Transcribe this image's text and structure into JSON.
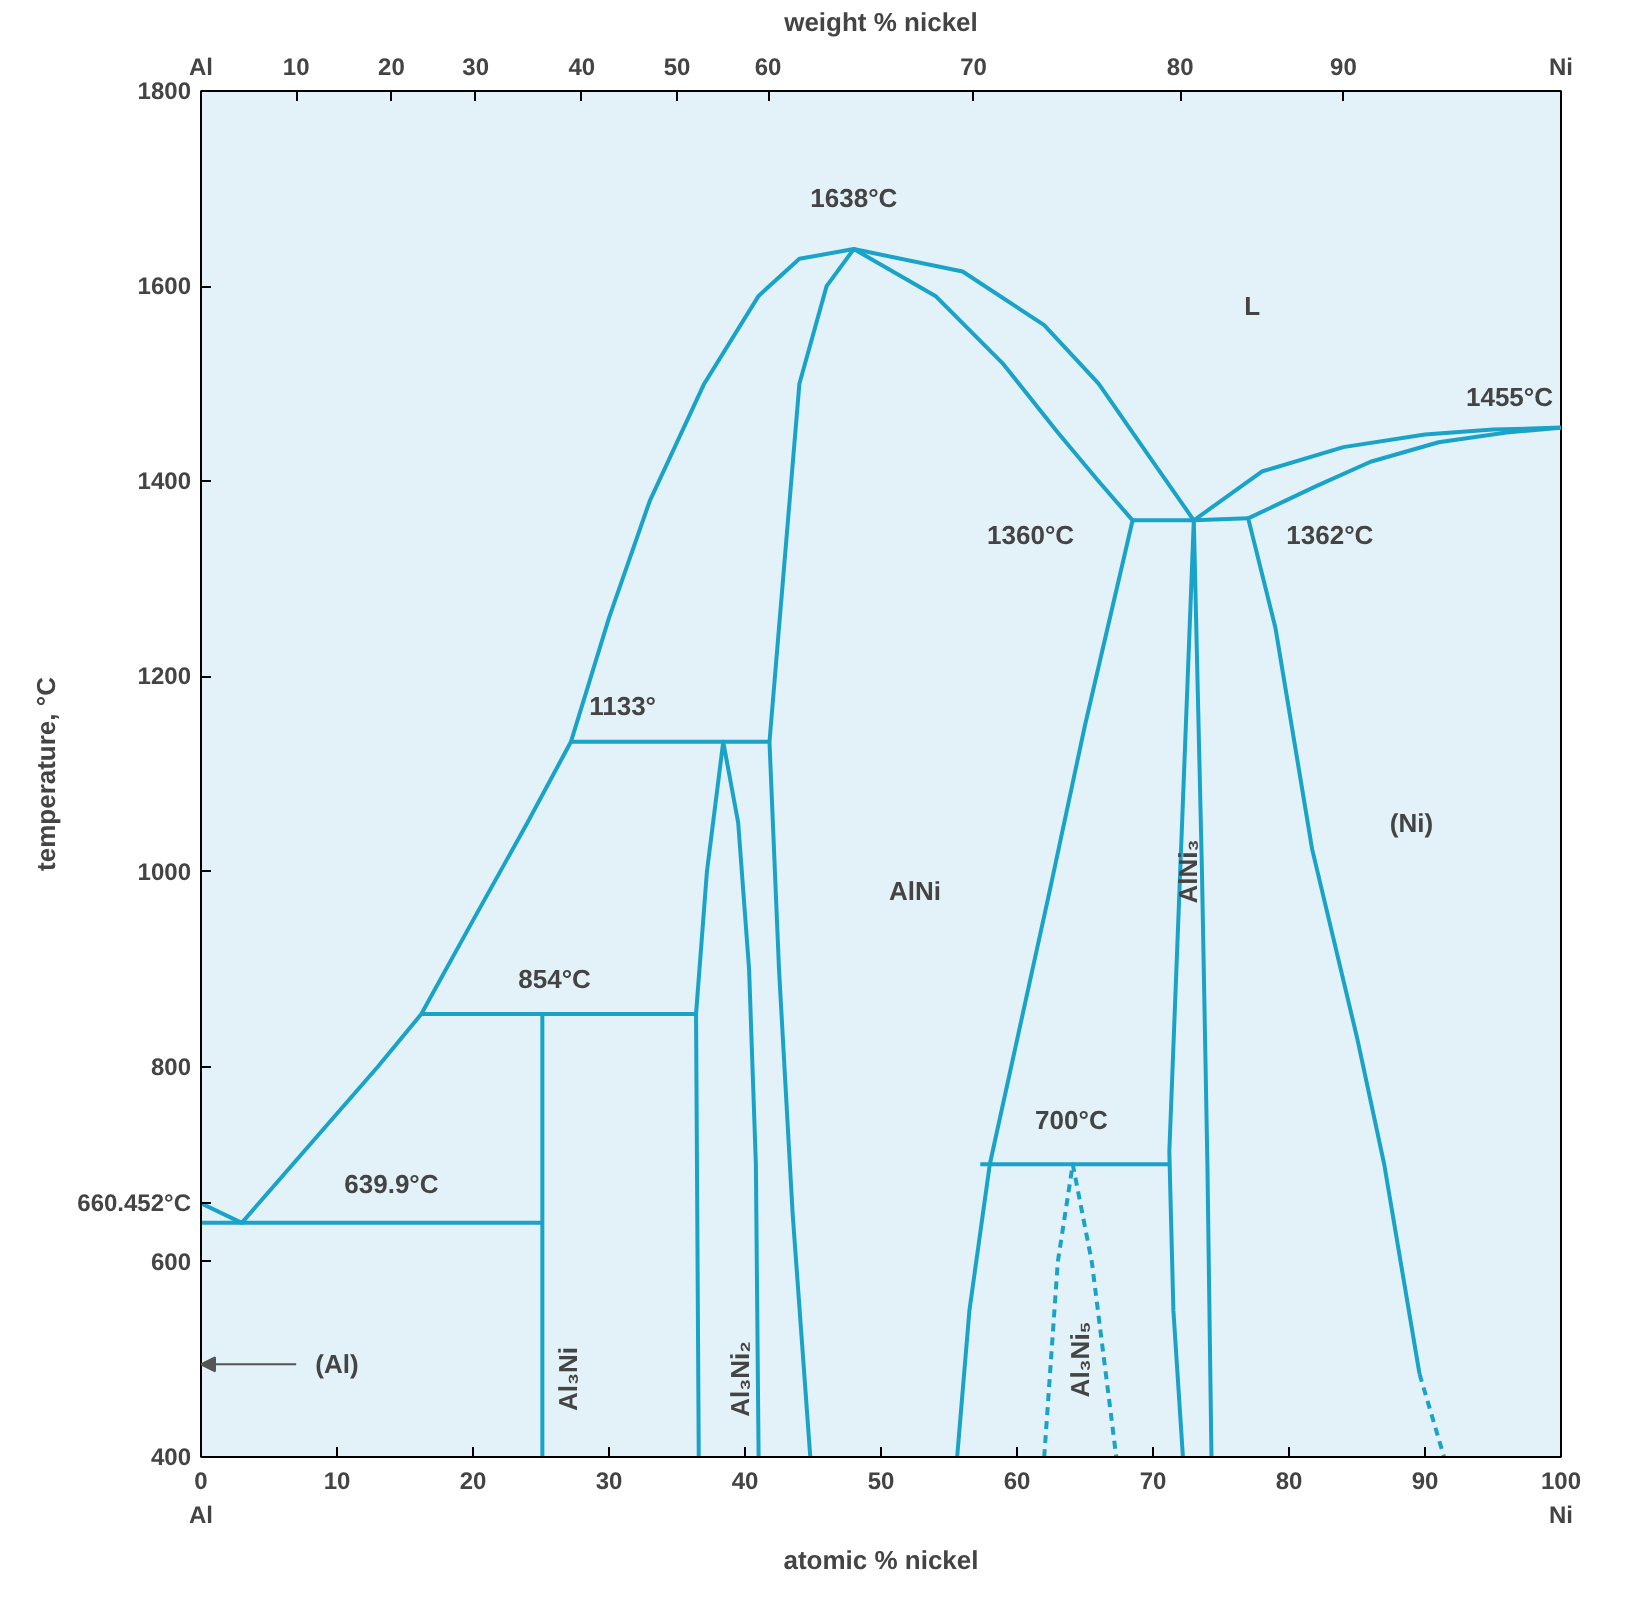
{
  "chart_data": {
    "type": "line",
    "xlabel": "atomic % nickel",
    "ylabel": "temperature, °C",
    "x2label": "weight % nickel",
    "xlim": [
      0,
      100
    ],
    "ylim": [
      400,
      1800
    ],
    "xticks": [
      {
        "value": 0,
        "label": "0\nAl"
      },
      10,
      20,
      30,
      40,
      50,
      60,
      70,
      80,
      90,
      {
        "value": 100,
        "label": "100\nNi"
      }
    ],
    "yticks": [
      400,
      600,
      {
        "value": 660.452,
        "label": "660.452°C"
      },
      800,
      1000,
      1200,
      1400,
      1600,
      1800
    ],
    "grid": false,
    "marker": "none",
    "series": [
      {
        "color": "#1aa3c8",
        "x": [
          0,
          3,
          8,
          13,
          16.2,
          20,
          24,
          27.2,
          30,
          33,
          37,
          41,
          44,
          48,
          56,
          62,
          66,
          70,
          73,
          78,
          84,
          90,
          95,
          100
        ],
        "values": [
          660,
          640,
          720,
          800,
          854,
          950,
          1050,
          1133,
          1260,
          1380,
          1500,
          1590,
          1628,
          1638,
          1615,
          1560,
          1500,
          1420,
          1360,
          1410,
          1435,
          1448,
          1453,
          1455
        ]
      },
      {
        "color": "#1aa3c8",
        "x": [
          44.8,
          43.5,
          42.5,
          41.8,
          42.8,
          44,
          46,
          48,
          54,
          59,
          63,
          66,
          68.5,
          65,
          62.4,
          58,
          56.5,
          55.6
        ],
        "values": [
          400,
          650,
          900,
          1133,
          1300,
          1500,
          1600,
          1638,
          1590,
          1520,
          1450,
          1400,
          1360,
          1150,
          980,
          700,
          550,
          400
        ]
      },
      {
        "color": "#1aa3c8",
        "x": [
          68.5,
          73,
          77
        ],
        "values": [
          1360,
          1360,
          1362
        ]
      },
      {
        "color": "#1aa3c8",
        "x": [
          100,
          96,
          91,
          86,
          82,
          77,
          79,
          81.7,
          85,
          87,
          89.6
        ],
        "values": [
          1455,
          1450,
          1440,
          1420,
          1395,
          1362,
          1250,
          1023,
          830,
          700,
          485
        ]
      },
      {
        "color": "#1aa3c8",
        "line_style": "dashed",
        "x": [
          89.6,
          91.4
        ],
        "values": [
          485,
          400
        ]
      },
      {
        "color": "#1aa3c8",
        "x": [
          72.2,
          71.5,
          71.2,
          72,
          73,
          73.6,
          74,
          74.3
        ],
        "values": [
          400,
          550,
          713,
          1000,
          1360,
          1000,
          700,
          400
        ]
      },
      {
        "color": "#1aa3c8",
        "x": [
          57.3,
          71.2
        ],
        "values": [
          700,
          700
        ]
      },
      {
        "color": "#1aa3c8",
        "line_style": "dashed",
        "x": [
          62,
          63,
          64.1,
          65.5,
          67.3
        ],
        "values": [
          400,
          600,
          700,
          600,
          400
        ]
      },
      {
        "color": "#1aa3c8",
        "x": [
          27.2,
          41.8
        ],
        "values": [
          1133,
          1133
        ]
      },
      {
        "color": "#1aa3c8",
        "x": [
          36.6,
          36.4,
          37.2,
          38.4,
          39.5,
          40.3,
          40.8,
          41
        ],
        "values": [
          400,
          854,
          1000,
          1133,
          1050,
          900,
          700,
          400
        ]
      },
      {
        "color": "#1aa3c8",
        "x": [
          16.2,
          36.4
        ],
        "values": [
          854,
          854
        ]
      },
      {
        "color": "#1aa3c8",
        "x": [
          25.1,
          25.1
        ],
        "values": [
          400,
          854
        ]
      },
      {
        "color": "#1aa3c8",
        "x": [
          0,
          25.1
        ],
        "values": [
          640,
          640
        ]
      }
    ],
    "annotations": [
      "Al",
      "10",
      "20",
      "30",
      "40",
      "50",
      "60",
      "70",
      "80",
      "90",
      "Ni",
      "1638°C",
      "L",
      "1360°C",
      "1362°C",
      "1133°",
      "854°C",
      "639.9°C",
      "700°C",
      "AlNi",
      "(Ni)",
      "AlNi₃",
      "Al₃Ni",
      "Al₃Ni₂",
      "Al₃Ni₅",
      "(Al)",
      {
        "text": "1455°C",
        "x": 100,
        "y": 1455
      }
    ]
  }
}
